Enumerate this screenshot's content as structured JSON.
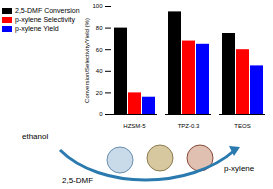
{
  "chart_data": {
    "type": "bar",
    "categories": [
      "HZSM-5",
      "TPZ-0.3",
      "TEOS"
    ],
    "series": [
      {
        "name": "2,5-DMF Conversion",
        "color": "#000000",
        "values": [
          80,
          95,
          75
        ]
      },
      {
        "name": "p-xylene Selectivity",
        "color": "#ff0000",
        "values": [
          20,
          68,
          60
        ]
      },
      {
        "name": "p-xylene Yield",
        "color": "#0000ff",
        "values": [
          16,
          65,
          45
        ]
      }
    ],
    "y_label": "Conversion/Selectivity/Yield (%)",
    "ylim": [
      0,
      100
    ],
    "yticks": [
      0,
      20,
      40,
      60,
      80,
      100
    ],
    "grid": false,
    "legend": "top-left",
    "annotations": [
      "ethanol",
      "2,5-DMF",
      "p-xylene"
    ]
  }
}
